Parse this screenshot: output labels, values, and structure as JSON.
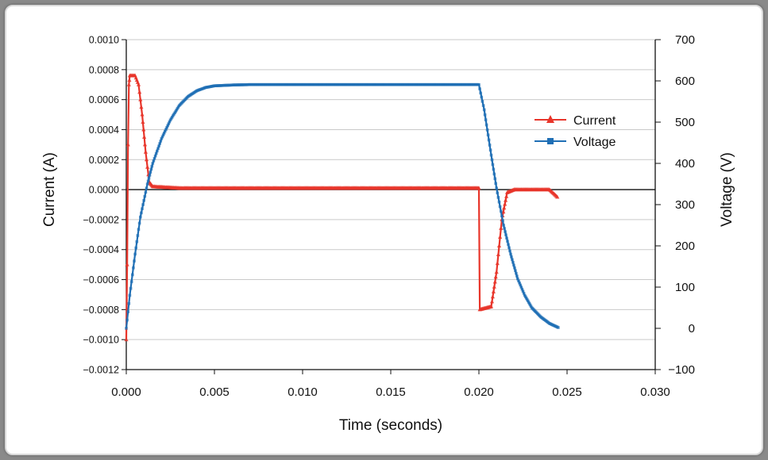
{
  "chart_data": {
    "type": "line",
    "xlabel": "Time (seconds)",
    "ylabel_left": "Current (A)",
    "ylabel_right": "Voltage (V)",
    "xlim": [
      0,
      0.03
    ],
    "ylim_left": [
      -0.0012,
      0.001
    ],
    "ylim_right": [
      -100,
      700
    ],
    "x_ticks": [
      "0.000",
      "0.005",
      "0.010",
      "0.015",
      "0.020",
      "0.025",
      "0.030"
    ],
    "y_left_ticks": [
      "0.0010",
      "0.0008",
      "0.0006",
      "0.0004",
      "0.0002",
      "0.0000",
      "−0.0002",
      "−0.0004",
      "−0.0006",
      "−0.0008",
      "−0.0010",
      "−0.0012"
    ],
    "y_right_ticks": [
      "700",
      "600",
      "500",
      "400",
      "300",
      "200",
      "100",
      "0",
      "−100"
    ],
    "grid": true,
    "legend_position": "right",
    "series": [
      {
        "name": "Current",
        "axis": "left",
        "color": "#e8352a",
        "marker": "triangle",
        "points": [
          [
            0.0,
            -0.001
          ],
          [
            5e-05,
            -0.0005
          ],
          [
            0.0001,
            0.0003
          ],
          [
            0.00015,
            0.0007
          ],
          [
            0.0002,
            0.00076
          ],
          [
            0.0005,
            0.00076
          ],
          [
            0.0007,
            0.0007
          ],
          [
            0.0009,
            0.0005
          ],
          [
            0.0011,
            0.00025
          ],
          [
            0.0013,
            5e-05
          ],
          [
            0.0015,
            2e-05
          ],
          [
            0.003,
            1e-05
          ],
          [
            0.01,
            1e-05
          ],
          [
            0.02,
            1e-05
          ],
          [
            0.02005,
            -0.0008
          ],
          [
            0.0207,
            -0.00078
          ],
          [
            0.021,
            -0.00055
          ],
          [
            0.0213,
            -0.0002
          ],
          [
            0.0216,
            -2e-05
          ],
          [
            0.022,
            0.0
          ],
          [
            0.024,
            0.0
          ],
          [
            0.02445,
            -5e-05
          ]
        ]
      },
      {
        "name": "Voltage",
        "axis": "right",
        "color": "#1f6fb5",
        "marker": "square",
        "points": [
          [
            0.0,
            0
          ],
          [
            0.0002,
            80
          ],
          [
            0.0005,
            180
          ],
          [
            0.0008,
            270
          ],
          [
            0.0012,
            350
          ],
          [
            0.0015,
            400
          ],
          [
            0.002,
            460
          ],
          [
            0.0025,
            505
          ],
          [
            0.003,
            540
          ],
          [
            0.0035,
            562
          ],
          [
            0.004,
            576
          ],
          [
            0.0045,
            584
          ],
          [
            0.005,
            588
          ],
          [
            0.006,
            590
          ],
          [
            0.007,
            591
          ],
          [
            0.015,
            591
          ],
          [
            0.02,
            591
          ],
          [
            0.0203,
            530
          ],
          [
            0.0207,
            420
          ],
          [
            0.021,
            340
          ],
          [
            0.0214,
            250
          ],
          [
            0.0218,
            180
          ],
          [
            0.0222,
            120
          ],
          [
            0.0226,
            80
          ],
          [
            0.023,
            50
          ],
          [
            0.0235,
            28
          ],
          [
            0.024,
            12
          ],
          [
            0.0245,
            2
          ]
        ]
      }
    ]
  }
}
